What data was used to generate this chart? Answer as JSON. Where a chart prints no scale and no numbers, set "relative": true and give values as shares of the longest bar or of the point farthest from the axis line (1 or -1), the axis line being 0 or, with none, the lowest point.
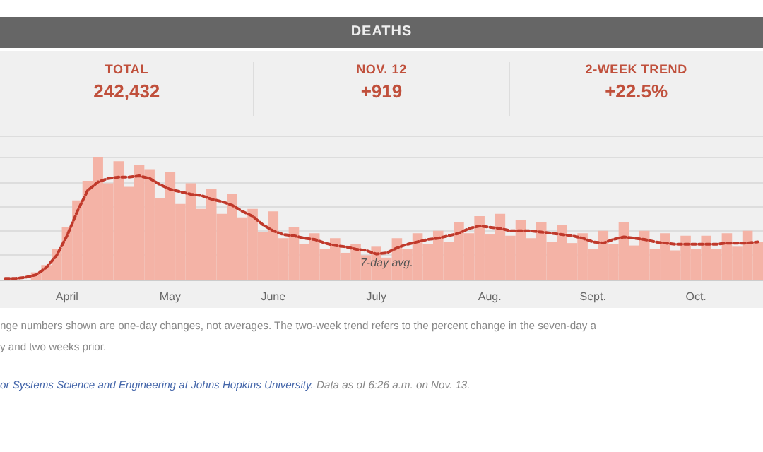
{
  "chart_data": {
    "type": "bar",
    "title": "DEATHS",
    "relative": true,
    "grid": "y",
    "marker": "none",
    "annotations": [
      "TOTAL",
      "242,432",
      "NOV. 12",
      "+919",
      "2-WEEK TREND",
      "+22.5%",
      "nge numbers shown are one-day changes, not averages. The two-week trend refers to the percent change in the seven-day a",
      "y and two weeks prior.",
      "or Systems Science and Engineering at Johns Hopkins University.",
      "Data as of 6:26 a.m. on Nov. 13."
    ],
    "categories": [
      null,
      null,
      null,
      null,
      null,
      null,
      "April",
      null,
      null,
      null,
      null,
      null,
      null,
      null,
      null,
      null,
      "May",
      null,
      null,
      null,
      null,
      null,
      null,
      null,
      null,
      null,
      "June",
      null,
      null,
      null,
      null,
      null,
      null,
      null,
      null,
      null,
      "July",
      null,
      null,
      null,
      null,
      null,
      null,
      null,
      null,
      null,
      null,
      "Aug.",
      null,
      null,
      null,
      null,
      null,
      null,
      null,
      null,
      null,
      "Sept.",
      null,
      null,
      null,
      null,
      null,
      null,
      null,
      null,
      null,
      "Oct.",
      null,
      null,
      null,
      null,
      null,
      null
    ],
    "series": [
      {
        "color": "#f4b3a6",
        "values": [
          null,
          null,
          null,
          0.06,
          0.12,
          0.25,
          0.43,
          0.65,
          0.81,
          1,
          0.79,
          0.97,
          0.76,
          0.94,
          0.9,
          0.67,
          0.88,
          0.62,
          0.79,
          0.58,
          0.74,
          0.54,
          0.7,
          0.51,
          0.58,
          0.39,
          0.56,
          0.34,
          0.43,
          0.29,
          0.38,
          0.25,
          0.34,
          0.22,
          0.29,
          0.2,
          0.27,
          0.18,
          0.34,
          0.25,
          0.38,
          0.29,
          0.4,
          0.31,
          0.47,
          0.38,
          0.52,
          0.37,
          0.54,
          0.36,
          0.49,
          0.34,
          0.47,
          0.31,
          0.45,
          0.3,
          0.38,
          0.25,
          0.4,
          0.29,
          0.47,
          0.28,
          0.4,
          0.25,
          0.38,
          0.24,
          0.36,
          0.25,
          0.36,
          0.25,
          0.38,
          0.27,
          0.4,
          0.31
        ]
      },
      {
        "type": "line",
        "name": "7-day avg.",
        "color": "#c0392b",
        "line_style": "dashed",
        "values": [
          0.01,
          0.01,
          0.02,
          0.04,
          0.1,
          0.2,
          0.36,
          0.56,
          0.73,
          0.8,
          0.83,
          0.84,
          0.84,
          0.85,
          0.83,
          0.78,
          0.74,
          0.72,
          0.7,
          0.69,
          0.66,
          0.64,
          0.61,
          0.56,
          0.52,
          0.45,
          0.4,
          0.37,
          0.36,
          0.34,
          0.33,
          0.3,
          0.28,
          0.27,
          0.25,
          0.24,
          0.21,
          0.22,
          0.26,
          0.29,
          0.31,
          0.33,
          0.34,
          0.36,
          0.38,
          0.42,
          0.44,
          0.43,
          0.42,
          0.4,
          0.4,
          0.4,
          0.39,
          0.38,
          0.37,
          0.36,
          0.34,
          0.31,
          0.3,
          0.33,
          0.35,
          0.34,
          0.33,
          0.31,
          0.3,
          0.29,
          0.29,
          0.29,
          0.29,
          0.29,
          0.3,
          0.3,
          0.3,
          0.31
        ]
      }
    ]
  }
}
